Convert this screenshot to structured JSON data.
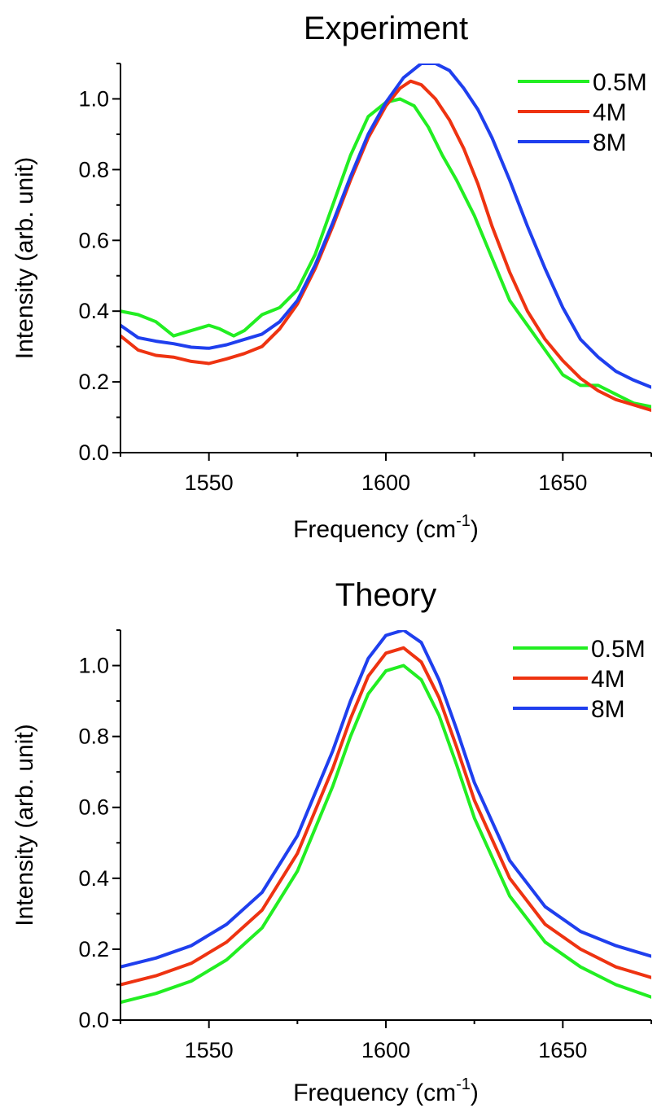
{
  "chart_data": [
    {
      "type": "line",
      "title": "Experiment",
      "xlabel": "Frequency (cm",
      "xlabel_sup": "-1",
      "xlabel_close": ")",
      "ylabel": "Intensity (arb. unit)",
      "xlim": [
        1525,
        1675
      ],
      "ylim": [
        0,
        1.1
      ],
      "xticks": [
        1550,
        1600,
        1650
      ],
      "xtick_labels": [
        "1550",
        "1600",
        "1650"
      ],
      "yticks": [
        0.0,
        0.2,
        0.4,
        0.6,
        0.8,
        1.0
      ],
      "ytick_labels": [
        "0.0",
        "0.2",
        "0.4",
        "0.6",
        "0.8",
        "1.0"
      ],
      "grid": false,
      "legend_position": "top-right",
      "series": [
        {
          "name": "0.5M",
          "color": "#22ee22",
          "x": [
            1525,
            1530,
            1535,
            1540,
            1545,
            1550,
            1553,
            1557,
            1560,
            1565,
            1570,
            1575,
            1580,
            1585,
            1590,
            1595,
            1600,
            1604,
            1608,
            1612,
            1616,
            1620,
            1625,
            1630,
            1635,
            1640,
            1645,
            1650,
            1655,
            1660,
            1665,
            1670,
            1675
          ],
          "y": [
            0.4,
            0.39,
            0.37,
            0.33,
            0.345,
            0.36,
            0.35,
            0.33,
            0.345,
            0.39,
            0.41,
            0.46,
            0.56,
            0.7,
            0.84,
            0.95,
            0.99,
            1.0,
            0.98,
            0.92,
            0.84,
            0.77,
            0.67,
            0.55,
            0.43,
            0.36,
            0.29,
            0.22,
            0.19,
            0.19,
            0.165,
            0.14,
            0.13
          ]
        },
        {
          "name": "4M",
          "color": "#ee3311",
          "x": [
            1525,
            1530,
            1535,
            1540,
            1545,
            1550,
            1555,
            1560,
            1565,
            1570,
            1575,
            1580,
            1585,
            1590,
            1595,
            1600,
            1604,
            1607,
            1610,
            1614,
            1618,
            1622,
            1626,
            1630,
            1635,
            1640,
            1645,
            1650,
            1655,
            1660,
            1665,
            1670,
            1675
          ],
          "y": [
            0.33,
            0.29,
            0.275,
            0.27,
            0.258,
            0.252,
            0.265,
            0.28,
            0.3,
            0.35,
            0.42,
            0.52,
            0.64,
            0.77,
            0.89,
            0.98,
            1.03,
            1.05,
            1.04,
            1.0,
            0.94,
            0.86,
            0.76,
            0.64,
            0.51,
            0.4,
            0.32,
            0.26,
            0.21,
            0.175,
            0.15,
            0.135,
            0.12
          ]
        },
        {
          "name": "8M",
          "color": "#1f3fee",
          "x": [
            1525,
            1530,
            1535,
            1540,
            1545,
            1550,
            1555,
            1560,
            1565,
            1570,
            1575,
            1580,
            1585,
            1590,
            1595,
            1600,
            1605,
            1610,
            1614,
            1618,
            1622,
            1626,
            1630,
            1635,
            1640,
            1645,
            1650,
            1655,
            1660,
            1665,
            1670,
            1675
          ],
          "y": [
            0.36,
            0.325,
            0.315,
            0.308,
            0.298,
            0.295,
            0.305,
            0.32,
            0.335,
            0.37,
            0.43,
            0.53,
            0.65,
            0.78,
            0.9,
            0.99,
            1.06,
            1.1,
            1.1,
            1.08,
            1.03,
            0.97,
            0.89,
            0.77,
            0.64,
            0.52,
            0.41,
            0.32,
            0.27,
            0.23,
            0.205,
            0.185
          ]
        }
      ]
    },
    {
      "type": "line",
      "title": "Theory",
      "xlabel": "Frequency (cm",
      "xlabel_sup": "-1",
      "xlabel_close": ")",
      "ylabel": "Intensity (arb. unit)",
      "xlim": [
        1525,
        1675
      ],
      "ylim": [
        0,
        1.1
      ],
      "xticks": [
        1550,
        1600,
        1650
      ],
      "xtick_labels": [
        "1550",
        "1600",
        "1650"
      ],
      "yticks": [
        0.0,
        0.2,
        0.4,
        0.6,
        0.8,
        1.0
      ],
      "ytick_labels": [
        "0.0",
        "0.2",
        "0.4",
        "0.6",
        "0.8",
        "1.0"
      ],
      "grid": false,
      "legend_position": "top-right",
      "series": [
        {
          "name": "0.5M",
          "color": "#22ee22",
          "x": [
            1525,
            1535,
            1545,
            1555,
            1565,
            1575,
            1585,
            1590,
            1595,
            1600,
            1605,
            1610,
            1615,
            1620,
            1625,
            1635,
            1645,
            1655,
            1665,
            1675
          ],
          "y": [
            0.05,
            0.075,
            0.11,
            0.17,
            0.26,
            0.42,
            0.66,
            0.8,
            0.92,
            0.985,
            1.0,
            0.96,
            0.86,
            0.72,
            0.57,
            0.35,
            0.22,
            0.15,
            0.1,
            0.065
          ]
        },
        {
          "name": "4M",
          "color": "#ee3311",
          "x": [
            1525,
            1535,
            1545,
            1555,
            1565,
            1575,
            1585,
            1590,
            1595,
            1600,
            1605,
            1610,
            1615,
            1620,
            1625,
            1635,
            1645,
            1655,
            1665,
            1675
          ],
          "y": [
            0.1,
            0.125,
            0.16,
            0.22,
            0.31,
            0.47,
            0.71,
            0.85,
            0.97,
            1.035,
            1.05,
            1.01,
            0.91,
            0.77,
            0.62,
            0.4,
            0.27,
            0.2,
            0.15,
            0.12
          ]
        },
        {
          "name": "8M",
          "color": "#1f3fee",
          "x": [
            1525,
            1535,
            1545,
            1555,
            1565,
            1575,
            1585,
            1590,
            1595,
            1600,
            1605,
            1610,
            1615,
            1620,
            1625,
            1635,
            1645,
            1655,
            1665,
            1675
          ],
          "y": [
            0.15,
            0.175,
            0.21,
            0.27,
            0.36,
            0.52,
            0.76,
            0.9,
            1.02,
            1.085,
            1.1,
            1.065,
            0.96,
            0.82,
            0.67,
            0.45,
            0.32,
            0.25,
            0.21,
            0.18
          ]
        }
      ]
    }
  ]
}
